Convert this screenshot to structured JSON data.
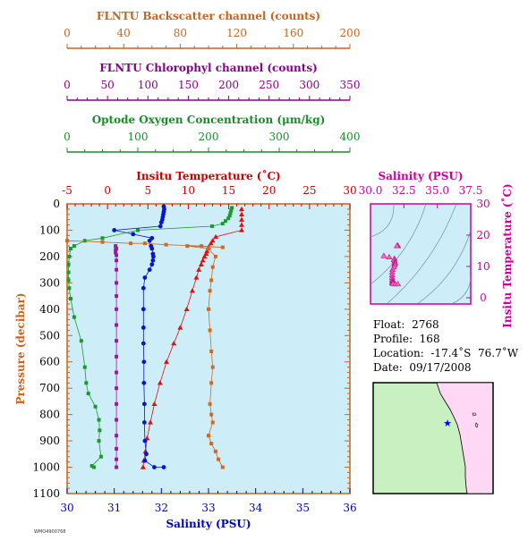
{
  "chart_data": {
    "type": "scatter",
    "axes": {
      "backscatter": {
        "label": "FLNTU Backscatter channel (counts)",
        "ticks": [
          0,
          40,
          80,
          120,
          160,
          200
        ],
        "range": [
          0,
          200
        ],
        "color": "#c8641e"
      },
      "chlorophyll": {
        "label": "FLNTU Chlorophyl channel (counts)",
        "ticks": [
          0,
          50,
          100,
          150,
          200,
          250,
          300,
          350
        ],
        "range": [
          0,
          350
        ],
        "color": "#8b008b"
      },
      "oxygen": {
        "label": "Optode Oxygen Concentration (μm/kg)",
        "ticks": [
          0,
          100,
          200,
          300,
          400
        ],
        "range": [
          0,
          400
        ],
        "color": "#1a8c2a"
      },
      "temperature": {
        "label": "Insitu Temperature (˚C)",
        "ticks": [
          -5,
          0,
          5,
          10,
          15,
          20,
          25,
          30
        ],
        "range": [
          -5,
          30
        ],
        "color": "#cc0000"
      },
      "salinity": {
        "label": "Salinity (PSU)",
        "ticks": [
          30,
          31,
          32,
          33,
          34,
          35,
          36
        ],
        "range": [
          30,
          36
        ],
        "color": "#0000cc"
      },
      "pressure": {
        "label": "Pressure (decibar)",
        "ticks": [
          0,
          100,
          200,
          300,
          400,
          500,
          600,
          700,
          800,
          900,
          1000,
          1100
        ],
        "range": [
          0,
          1100
        ],
        "inverted": true,
        "color": "#c8641e"
      }
    },
    "plot_background": "#cdeef8",
    "series": [
      {
        "key": "temperature",
        "color": "#e01010",
        "marker": "triangle",
        "points": [
          [
            16.6,
            20
          ],
          [
            16.6,
            40
          ],
          [
            16.6,
            60
          ],
          [
            16.6,
            80
          ],
          [
            16.6,
            100
          ],
          [
            13.4,
            125
          ],
          [
            13.0,
            140
          ],
          [
            12.8,
            150
          ],
          [
            12.5,
            165
          ],
          [
            12.3,
            180
          ],
          [
            12.2,
            190
          ],
          [
            12.0,
            200
          ],
          [
            11.8,
            215
          ],
          [
            11.6,
            230
          ],
          [
            11.3,
            250
          ],
          [
            11.0,
            280
          ],
          [
            10.5,
            330
          ],
          [
            9.8,
            400
          ],
          [
            9.0,
            470
          ],
          [
            8.2,
            530
          ],
          [
            7.3,
            600
          ],
          [
            6.5,
            680
          ],
          [
            5.8,
            760
          ],
          [
            5.3,
            830
          ],
          [
            4.9,
            890
          ],
          [
            4.7,
            940
          ],
          [
            4.5,
            975
          ],
          [
            4.4,
            1000
          ]
        ]
      },
      {
        "key": "salinity",
        "color": "#0a14cc",
        "marker": "circle",
        "points": [
          [
            32.05,
            10
          ],
          [
            32.06,
            20
          ],
          [
            32.05,
            30
          ],
          [
            32.04,
            40
          ],
          [
            32.03,
            50
          ],
          [
            32.02,
            60
          ],
          [
            32.0,
            70
          ],
          [
            31.98,
            85
          ],
          [
            31.0,
            100
          ],
          [
            31.4,
            115
          ],
          [
            31.8,
            130
          ],
          [
            31.75,
            140
          ],
          [
            31.78,
            160
          ],
          [
            31.8,
            170
          ],
          [
            31.82,
            190
          ],
          [
            31.83,
            200
          ],
          [
            31.82,
            215
          ],
          [
            31.8,
            230
          ],
          [
            31.75,
            250
          ],
          [
            31.65,
            280
          ],
          [
            31.62,
            320
          ],
          [
            31.62,
            400
          ],
          [
            31.62,
            470
          ],
          [
            31.62,
            530
          ],
          [
            31.63,
            600
          ],
          [
            31.63,
            680
          ],
          [
            31.64,
            760
          ],
          [
            31.64,
            830
          ],
          [
            31.65,
            900
          ],
          [
            31.68,
            950
          ],
          [
            31.65,
            975
          ],
          [
            31.85,
            1000
          ],
          [
            32.05,
            1000
          ]
        ]
      },
      {
        "key": "oxygen",
        "color": "#1a9a2a",
        "marker": "square",
        "points": [
          [
            233,
            15
          ],
          [
            232,
            25
          ],
          [
            231,
            35
          ],
          [
            230,
            45
          ],
          [
            228,
            55
          ],
          [
            224,
            65
          ],
          [
            220,
            75
          ],
          [
            205,
            85
          ],
          [
            100,
            100
          ],
          [
            50,
            130
          ],
          [
            25,
            140
          ],
          [
            10,
            160
          ],
          [
            5,
            170
          ],
          [
            3,
            200
          ],
          [
            2,
            230
          ],
          [
            2,
            260
          ],
          [
            2,
            290
          ],
          [
            3,
            320
          ],
          [
            5,
            360
          ],
          [
            10,
            430
          ],
          [
            20,
            520
          ],
          [
            25,
            620
          ],
          [
            27,
            680
          ],
          [
            30,
            720
          ],
          [
            40,
            770
          ],
          [
            45,
            820
          ],
          [
            46,
            860
          ],
          [
            45,
            900
          ],
          [
            48,
            960
          ],
          [
            35,
            995
          ],
          [
            38,
            1000
          ]
        ]
      },
      {
        "key": "backscatter",
        "color": "#d2691e",
        "marker": "square",
        "points": [
          [
            0,
            140
          ],
          [
            25,
            145
          ],
          [
            45,
            150
          ],
          [
            55,
            150
          ],
          [
            70,
            155
          ],
          [
            95,
            160
          ],
          [
            110,
            165
          ],
          [
            85,
            160
          ],
          [
            100,
            170
          ],
          [
            105,
            200
          ],
          [
            103,
            240
          ],
          [
            102,
            290
          ],
          [
            101,
            330
          ],
          [
            100,
            400
          ],
          [
            101,
            480
          ],
          [
            102,
            560
          ],
          [
            103,
            620
          ],
          [
            102,
            680
          ],
          [
            101,
            760
          ],
          [
            102,
            800
          ],
          [
            103,
            830
          ],
          [
            100,
            880
          ],
          [
            102,
            910
          ],
          [
            105,
            940
          ],
          [
            107,
            970
          ],
          [
            110,
            1000
          ]
        ]
      },
      {
        "key": "chlorophyll",
        "color": "#9a1a9a",
        "marker": "square",
        "points": [
          [
            60,
            160
          ],
          [
            61,
            170
          ],
          [
            60,
            175
          ],
          [
            60,
            185
          ],
          [
            61,
            195
          ],
          [
            61,
            215
          ],
          [
            61,
            250
          ],
          [
            61,
            300
          ],
          [
            61,
            350
          ],
          [
            61,
            400
          ],
          [
            61,
            460
          ],
          [
            61,
            520
          ],
          [
            61,
            580
          ],
          [
            61,
            640
          ],
          [
            61,
            700
          ],
          [
            61,
            760
          ],
          [
            61,
            820
          ],
          [
            61,
            880
          ],
          [
            61,
            930
          ],
          [
            61,
            970
          ],
          [
            61,
            1000
          ]
        ]
      }
    ],
    "ts_inset": {
      "xlabel": "Salinity (PSU)",
      "ylabel": "Insitu Temperature (˚C)",
      "xticks": [
        "30.0",
        "32.5",
        "35.0",
        "37.5"
      ],
      "yticks": [
        0,
        10,
        20,
        30
      ],
      "xrange": [
        30,
        37.5
      ],
      "yrange": [
        -2,
        30
      ],
      "color": "#cc0099",
      "points": [
        [
          32.05,
          16.6
        ],
        [
          32.04,
          16.6
        ],
        [
          32.02,
          16.6
        ],
        [
          31.98,
          16.6
        ],
        [
          31.0,
          13.4
        ],
        [
          31.4,
          13.0
        ],
        [
          31.8,
          12.5
        ],
        [
          31.75,
          12.2
        ],
        [
          31.8,
          11.8
        ],
        [
          31.82,
          11.3
        ],
        [
          31.83,
          11.0
        ],
        [
          31.8,
          10.5
        ],
        [
          31.75,
          9.8
        ],
        [
          31.65,
          9.0
        ],
        [
          31.62,
          8.2
        ],
        [
          31.62,
          7.3
        ],
        [
          31.62,
          6.5
        ],
        [
          31.63,
          5.8
        ],
        [
          31.64,
          5.3
        ],
        [
          31.64,
          4.9
        ],
        [
          31.65,
          4.7
        ],
        [
          31.68,
          4.5
        ],
        [
          31.85,
          4.4
        ],
        [
          32.05,
          4.4
        ]
      ]
    }
  },
  "float_info": {
    "float_label": "Float:",
    "float_value": "2768",
    "profile_label": "Profile:",
    "profile_value": "168",
    "location_label": "Location:",
    "location_value": "-17.4˚S  76.7˚W",
    "date_label": "Date:",
    "date_value": "09/17/2008"
  },
  "footer_text": "WMO4900768"
}
